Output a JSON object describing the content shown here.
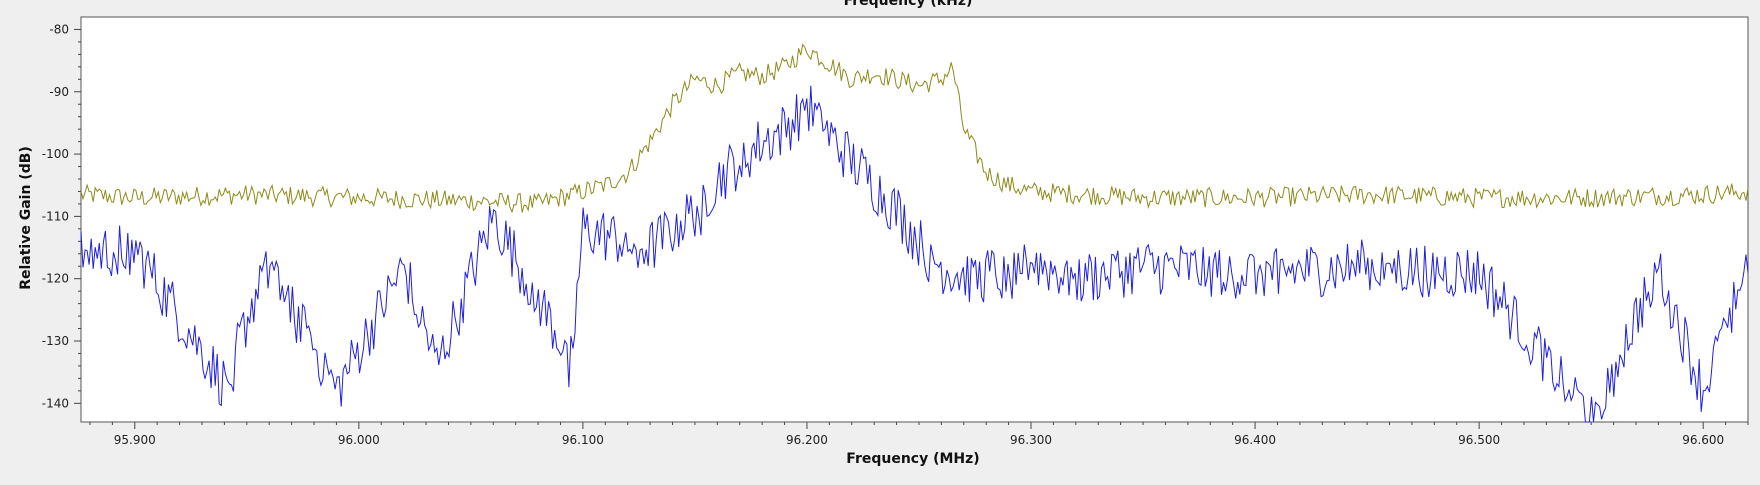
{
  "chart_data": {
    "type": "line",
    "title": "Frequency (kHz)",
    "xlabel": "Frequency (MHz)",
    "ylabel": "Relative Gain (dB)",
    "xlim": [
      95.876,
      96.62
    ],
    "ylim": [
      -143,
      -78
    ],
    "x_ticks": [
      "95.900",
      "96.000",
      "96.100",
      "96.200",
      "96.300",
      "96.400",
      "96.500",
      "96.600"
    ],
    "y_ticks": [
      -80,
      -90,
      -100,
      -110,
      -120,
      -130,
      -140
    ],
    "grid": false,
    "series": [
      {
        "color": "#8b8b1a",
        "x": [
          95.876,
          95.9,
          95.95,
          96.0,
          96.05,
          96.08,
          96.1,
          96.11,
          96.12,
          96.13,
          96.14,
          96.15,
          96.16,
          96.17,
          96.18,
          96.19,
          96.2,
          96.21,
          96.22,
          96.23,
          96.24,
          96.25,
          96.26,
          96.265,
          96.27,
          96.28,
          96.29,
          96.3,
          96.35,
          96.4,
          96.45,
          96.5,
          96.55,
          96.6,
          96.62
        ],
        "values": [
          -106.5,
          -107,
          -106.5,
          -107,
          -107.5,
          -108,
          -106,
          -105,
          -103,
          -98,
          -92,
          -88,
          -89,
          -87,
          -87.5,
          -86,
          -83,
          -85.5,
          -88,
          -87,
          -88,
          -89,
          -88,
          -86,
          -96,
          -103,
          -105,
          -106,
          -107,
          -107,
          -106.5,
          -107,
          -107,
          -106.5,
          -106
        ]
      },
      {
        "color": "#1f1fe0",
        "x": [
          95.876,
          95.9,
          95.94,
          95.96,
          95.99,
          96.02,
          96.035,
          96.06,
          96.095,
          96.1,
          96.13,
          96.15,
          96.16,
          96.17,
          96.18,
          96.19,
          96.2,
          96.21,
          96.22,
          96.23,
          96.24,
          96.25,
          96.26,
          96.275,
          96.3,
          96.32,
          96.35,
          96.4,
          96.45,
          96.5,
          96.55,
          96.58,
          96.6,
          96.62
        ],
        "values": [
          -116,
          -115,
          -137,
          -116,
          -138,
          -118,
          -134,
          -110,
          -133,
          -112,
          -115,
          -109,
          -104,
          -101,
          -98,
          -96,
          -92,
          -97,
          -101,
          -105,
          -109,
          -114,
          -118,
          -120,
          -117,
          -120,
          -118,
          -119,
          -118,
          -119,
          -142,
          -118,
          -138,
          -117
        ]
      }
    ]
  }
}
